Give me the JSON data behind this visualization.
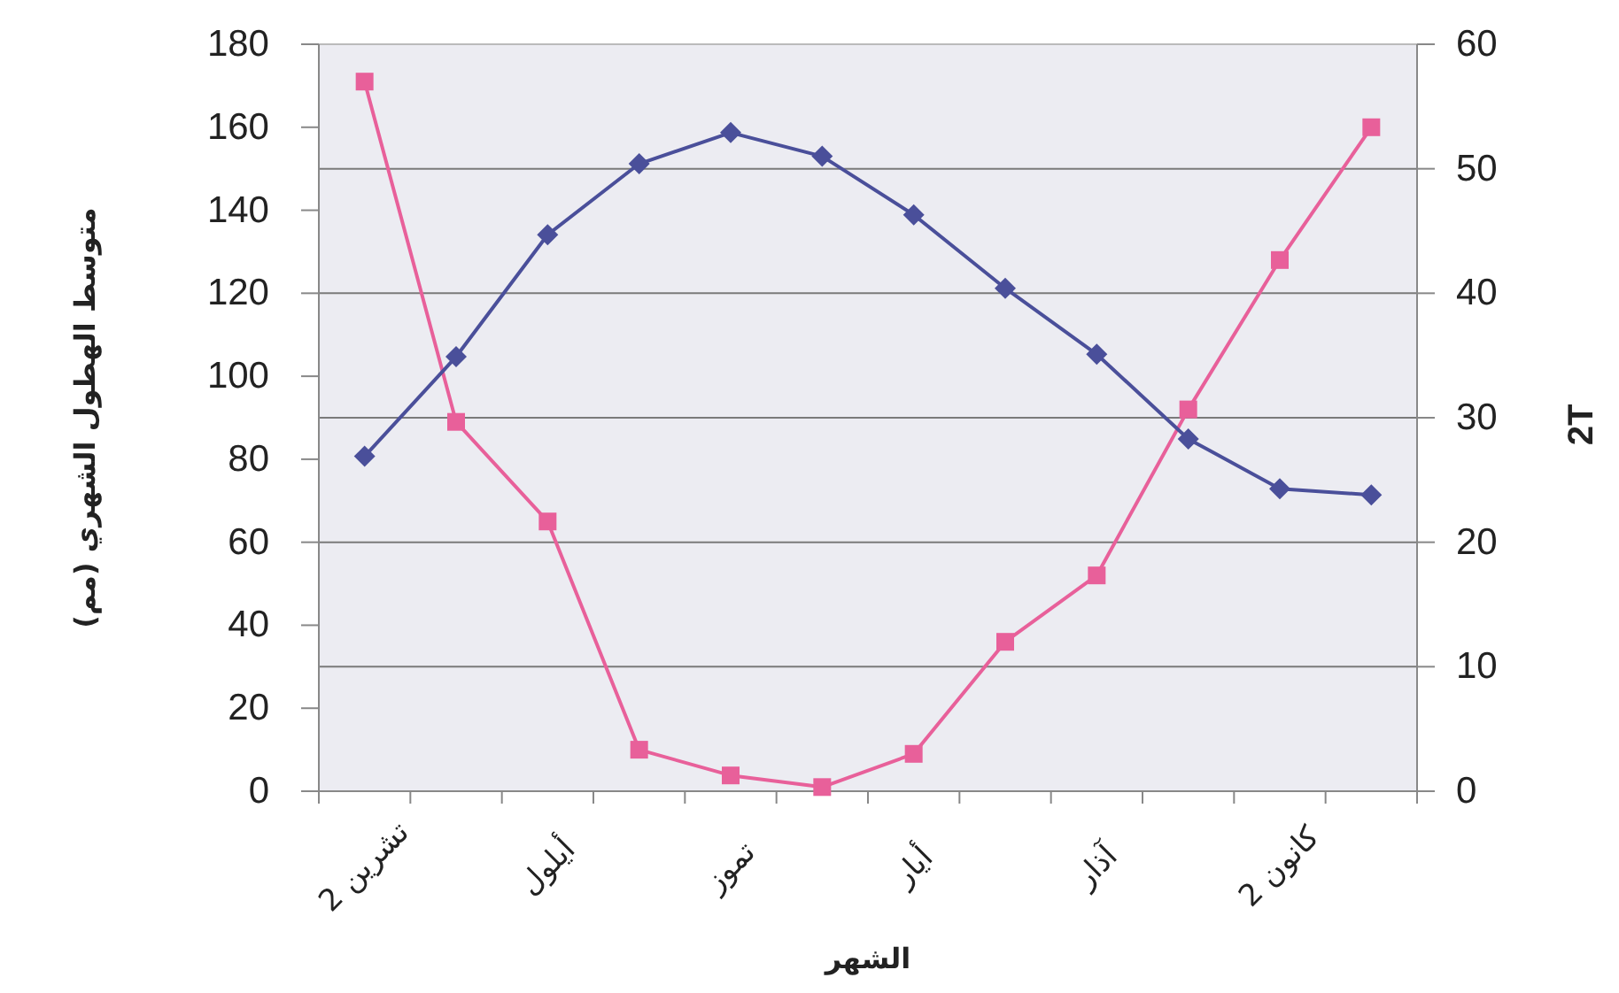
{
  "chart_data": {
    "type": "line",
    "categories": [
      "تشرين 2",
      null,
      "أيلول",
      null,
      "تموز",
      null,
      "أيار",
      null,
      "آذار",
      null,
      "كانون 2",
      null
    ],
    "xlabel": "الشهر",
    "ylabel": "متوسط الهطول الشهري (مم)",
    "y2label": "2T",
    "ylim": [
      0,
      180
    ],
    "yticks": [
      0,
      20,
      40,
      60,
      80,
      100,
      120,
      140,
      160,
      180
    ],
    "y2lim": [
      0,
      60
    ],
    "y2ticks": [
      0,
      10,
      20,
      30,
      40,
      50,
      60
    ],
    "grid": "y2",
    "line_style": "solid",
    "series": [
      {
        "color": "#e8609a",
        "marker": "square",
        "values": [
          171,
          89,
          65,
          10,
          3.8,
          1,
          9,
          36,
          52,
          92,
          128,
          160
        ]
      },
      {
        "color": "#4a4f9a",
        "marker": "diamond",
        "axis": "y2",
        "values": [
          26.9,
          34.9,
          44.7,
          50.4,
          52.9,
          51.0,
          46.3,
          40.4,
          35.1,
          28.3,
          24.3,
          23.8
        ]
      }
    ]
  }
}
